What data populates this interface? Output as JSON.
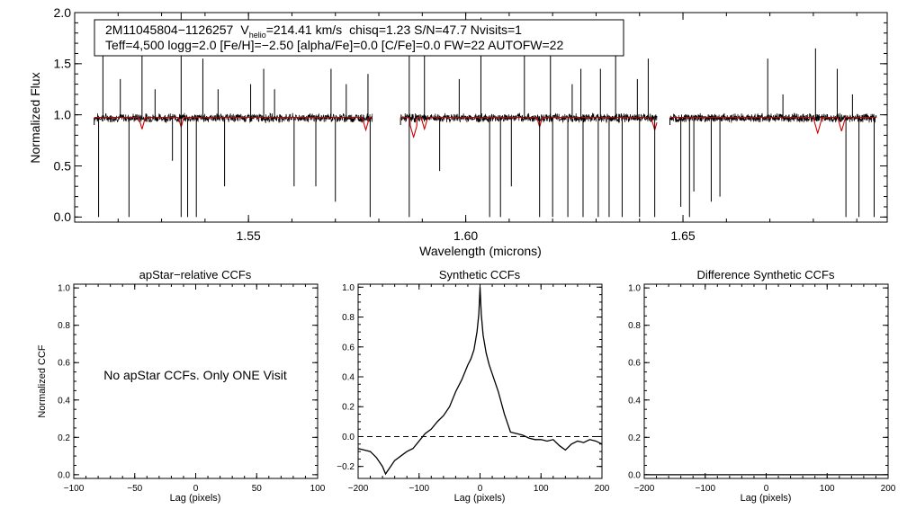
{
  "chart_data": [
    {
      "type": "line",
      "panel": "spectrum",
      "info": {
        "star_id": "2M11045804−1126257",
        "v_label": "V",
        "v_sub": "helio",
        "v_value": "=214.41 km/s",
        "rest_line1": "chisq=1.23  S/N=47.7  Nvisits=1",
        "line2": "Teff=4,500 logg=2.0 [Fe/H]=−2.50 [alpha/Fe]=0.0 [C/Fe]=0.0 FW=22 AUTOFW=22"
      },
      "xlabel": "Wavelength (microns)",
      "ylabel": "Normalized Flux",
      "xlim": [
        1.51,
        1.697
      ],
      "ylim": [
        -0.05,
        2.0
      ],
      "xticks": [
        1.55,
        1.6,
        1.65
      ],
      "xtick_labels": [
        "1.55",
        "1.60",
        "1.65"
      ],
      "yticks": [
        0.0,
        0.5,
        1.0,
        1.5,
        2.0
      ],
      "ytick_labels": [
        "0.0",
        "0.5",
        "1.0",
        "1.5",
        "2.0"
      ],
      "chips": [
        [
          1.5145,
          1.5785
        ],
        [
          1.585,
          1.644
        ],
        [
          1.647,
          1.6945
        ]
      ],
      "continuum": 0.97,
      "spikes_up": [
        [
          1.5165,
          1.9
        ],
        [
          1.5205,
          1.35
        ],
        [
          1.5255,
          1.7
        ],
        [
          1.5285,
          1.25
        ],
        [
          1.5345,
          2.0
        ],
        [
          1.5395,
          1.55
        ],
        [
          1.543,
          1.25
        ],
        [
          1.5505,
          1.3
        ],
        [
          1.5535,
          1.45
        ],
        [
          1.556,
          1.25
        ],
        [
          1.569,
          1.45
        ],
        [
          1.5725,
          1.3
        ],
        [
          1.5775,
          1.4
        ],
        [
          1.587,
          1.7
        ],
        [
          1.5905,
          1.9
        ],
        [
          1.5985,
          1.35
        ],
        [
          1.6035,
          1.95
        ],
        [
          1.6135,
          1.9
        ],
        [
          1.6195,
          1.6
        ],
        [
          1.6245,
          1.3
        ],
        [
          1.6265,
          1.45
        ],
        [
          1.631,
          1.45
        ],
        [
          1.6345,
          1.7
        ],
        [
          1.6395,
          1.35
        ],
        [
          1.642,
          1.55
        ],
        [
          1.6695,
          1.55
        ],
        [
          1.673,
          1.2
        ],
        [
          1.6805,
          1.65
        ],
        [
          1.6855,
          1.45
        ],
        [
          1.689,
          1.2
        ]
      ],
      "spikes_down": [
        [
          1.5155,
          0.0
        ],
        [
          1.5225,
          0.0
        ],
        [
          1.5325,
          0.55
        ],
        [
          1.5345,
          0.0
        ],
        [
          1.536,
          0.0
        ],
        [
          1.538,
          0.0
        ],
        [
          1.5445,
          0.3
        ],
        [
          1.5605,
          0.3
        ],
        [
          1.5655,
          0.3
        ],
        [
          1.57,
          0.15
        ],
        [
          1.578,
          0.0
        ],
        [
          1.587,
          0.0
        ],
        [
          1.594,
          0.45
        ],
        [
          1.6055,
          0.0
        ],
        [
          1.608,
          0.0
        ],
        [
          1.6105,
          0.3
        ],
        [
          1.617,
          0.0
        ],
        [
          1.62,
          0.0
        ],
        [
          1.6235,
          0.0
        ],
        [
          1.627,
          0.0
        ],
        [
          1.6305,
          0.0
        ],
        [
          1.633,
          0.0
        ],
        [
          1.636,
          0.0
        ],
        [
          1.64,
          0.0
        ],
        [
          1.6435,
          0.0
        ],
        [
          1.6495,
          0.1
        ],
        [
          1.6515,
          0.0
        ],
        [
          1.6525,
          0.25
        ],
        [
          1.6565,
          0.15
        ],
        [
          1.6585,
          0.2
        ],
        [
          1.6875,
          0.0
        ],
        [
          1.6905,
          0.0
        ],
        [
          1.694,
          0.0
        ]
      ],
      "model_dips": [
        [
          1.5255,
          0.86
        ],
        [
          1.5345,
          0.88
        ],
        [
          1.577,
          0.85
        ],
        [
          1.588,
          0.78
        ],
        [
          1.5905,
          0.86
        ],
        [
          1.617,
          0.88
        ],
        [
          1.6435,
          0.85
        ],
        [
          1.681,
          0.82
        ],
        [
          1.6865,
          0.84
        ]
      ],
      "colors": {
        "observed": "#000000",
        "model": "#cc0000"
      }
    },
    {
      "type": "line",
      "panel": "apstar",
      "title": "apStar−relative CCFs",
      "xlabel": "Lag (pixels)",
      "ylabel": "Normalized CCF",
      "xlim": [
        -100,
        100
      ],
      "ylim": [
        -0.02,
        1.02
      ],
      "xticks": [
        -100,
        -50,
        0,
        50,
        100
      ],
      "xtick_labels": [
        "−100",
        "−50",
        "0",
        "50",
        "100"
      ],
      "yticks": [
        0.0,
        0.2,
        0.4,
        0.6,
        0.8,
        1.0
      ],
      "ytick_labels": [
        "0.0",
        "0.2",
        "0.4",
        "0.6",
        "0.8",
        "1.0"
      ],
      "annotation": "No apStar CCFs.  Only ONE Visit",
      "series": []
    },
    {
      "type": "line",
      "panel": "synthetic",
      "title": "Synthetic CCFs",
      "xlabel": "Lag (pixels)",
      "ylabel": "",
      "xlim": [
        -200,
        200
      ],
      "ylim": [
        -0.28,
        1.02
      ],
      "xticks": [
        -200,
        -100,
        0,
        100,
        200
      ],
      "xtick_labels": [
        "−200",
        "−100",
        "0",
        "100",
        "200"
      ],
      "yticks": [
        -0.2,
        0.0,
        0.2,
        0.4,
        0.6,
        0.8,
        1.0
      ],
      "ytick_labels": [
        "−0.2",
        "0.0",
        "0.2",
        "0.4",
        "0.6",
        "0.8",
        "1.0"
      ],
      "zero_line": 0.0,
      "series": [
        {
          "name": "CCF",
          "x": [
            -200,
            -190,
            -180,
            -170,
            -160,
            -155,
            -150,
            -140,
            -130,
            -120,
            -110,
            -100,
            -90,
            -80,
            -70,
            -60,
            -50,
            -40,
            -30,
            -20,
            -15,
            -10,
            -5,
            -2,
            0,
            2,
            5,
            10,
            15,
            20,
            30,
            40,
            50,
            60,
            70,
            80,
            90,
            100,
            110,
            120,
            130,
            140,
            150,
            160,
            170,
            180,
            190,
            200
          ],
          "y": [
            -0.08,
            -0.09,
            -0.1,
            -0.14,
            -0.2,
            -0.25,
            -0.22,
            -0.16,
            -0.13,
            -0.1,
            -0.08,
            -0.03,
            0.02,
            0.05,
            0.1,
            0.14,
            0.2,
            0.3,
            0.38,
            0.48,
            0.52,
            0.58,
            0.7,
            0.82,
            1.0,
            0.82,
            0.68,
            0.56,
            0.48,
            0.42,
            0.3,
            0.15,
            0.03,
            0.02,
            0.01,
            -0.01,
            -0.02,
            -0.02,
            -0.03,
            -0.02,
            -0.06,
            -0.09,
            -0.05,
            -0.03,
            -0.04,
            -0.02,
            -0.03,
            -0.05
          ]
        }
      ]
    },
    {
      "type": "line",
      "panel": "difference",
      "title": "Difference Synthetic CCFs",
      "xlabel": "Lag (pixels)",
      "ylabel": "",
      "xlim": [
        -200,
        200
      ],
      "ylim": [
        -0.02,
        1.02
      ],
      "xticks": [
        -200,
        -100,
        0,
        100,
        200
      ],
      "xtick_labels": [
        "−200",
        "−100",
        "0",
        "100",
        "200"
      ],
      "yticks": [
        0.0,
        0.2,
        0.4,
        0.6,
        0.8,
        1.0
      ],
      "ytick_labels": [
        "0.0",
        "0.2",
        "0.4",
        "0.6",
        "0.8",
        "1.0"
      ],
      "series": [
        {
          "name": "Difference",
          "x": [
            -200,
            200
          ],
          "y": [
            0.0,
            0.0
          ]
        }
      ]
    }
  ]
}
